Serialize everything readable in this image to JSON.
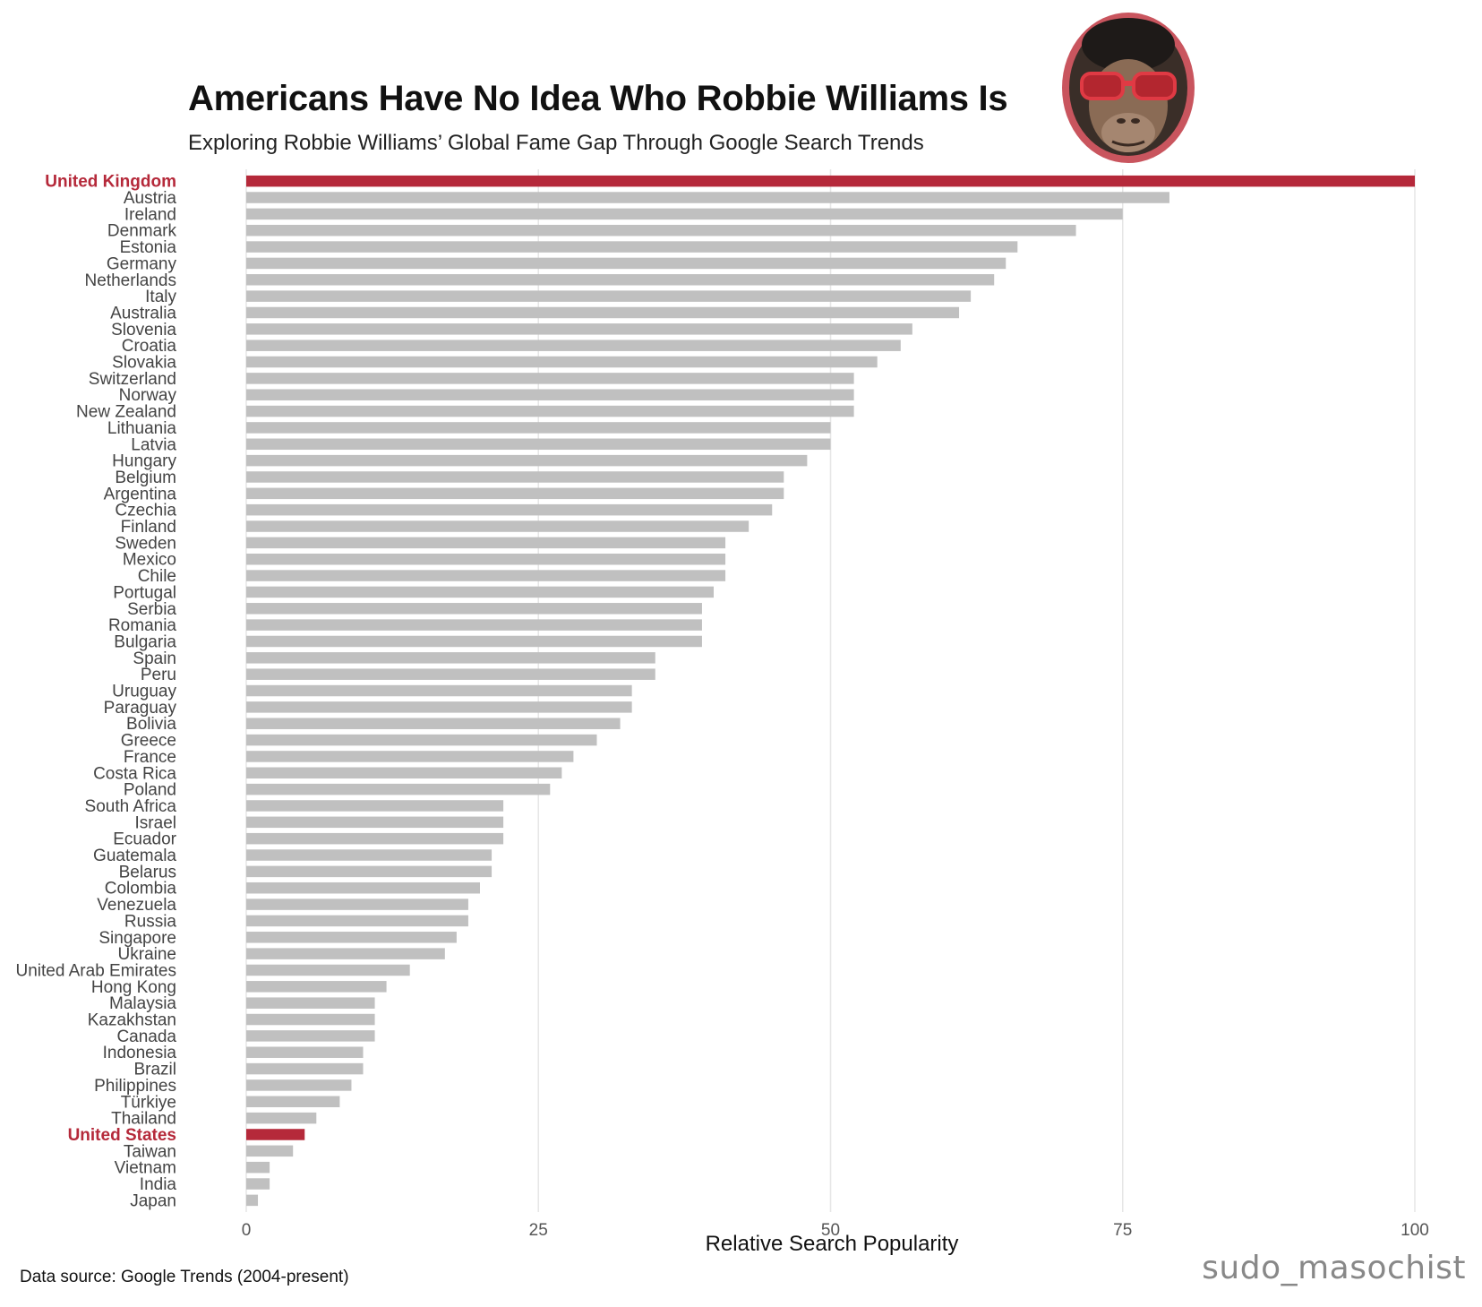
{
  "title": "Americans Have No Idea Who Robbie Williams Is",
  "subtitle": "Exploring Robbie Williams’ Global Fame Gap Through Google Search Trends",
  "source": "Data source: Google Trends (2004-present)",
  "watermark": "sudo_masochist",
  "colors": {
    "highlight": "#b5293a",
    "bar": "#c0c0c0",
    "grid": "#e6e6e6"
  },
  "chart_data": {
    "type": "bar",
    "orientation": "horizontal",
    "xlabel": "Relative Search Popularity",
    "ylabel": "",
    "xlim": [
      0,
      100
    ],
    "xticks": [
      0,
      25,
      50,
      75,
      100
    ],
    "grid": "vertical major",
    "highlighted": [
      "United Kingdom",
      "United States"
    ],
    "categories": [
      "United Kingdom",
      "Austria",
      "Ireland",
      "Denmark",
      "Estonia",
      "Germany",
      "Netherlands",
      "Italy",
      "Australia",
      "Slovenia",
      "Croatia",
      "Slovakia",
      "Switzerland",
      "Norway",
      "New Zealand",
      "Lithuania",
      "Latvia",
      "Hungary",
      "Belgium",
      "Argentina",
      "Czechia",
      "Finland",
      "Sweden",
      "Mexico",
      "Chile",
      "Portugal",
      "Serbia",
      "Romania",
      "Bulgaria",
      "Spain",
      "Peru",
      "Uruguay",
      "Paraguay",
      "Bolivia",
      "Greece",
      "France",
      "Costa Rica",
      "Poland",
      "South Africa",
      "Israel",
      "Ecuador",
      "Guatemala",
      "Belarus",
      "Colombia",
      "Venezuela",
      "Russia",
      "Singapore",
      "Ukraine",
      "United Arab Emirates",
      "Hong Kong",
      "Malaysia",
      "Kazakhstan",
      "Canada",
      "Indonesia",
      "Brazil",
      "Philippines",
      "Türkiye",
      "Thailand",
      "United States",
      "Taiwan",
      "Vietnam",
      "India",
      "Japan"
    ],
    "values": [
      100,
      79,
      75,
      71,
      66,
      65,
      64,
      62,
      61,
      57,
      56,
      54,
      52,
      52,
      52,
      50,
      50,
      48,
      46,
      46,
      45,
      43,
      41,
      41,
      41,
      40,
      39,
      39,
      39,
      35,
      35,
      33,
      33,
      32,
      30,
      28,
      27,
      26,
      22,
      22,
      22,
      21,
      21,
      20,
      19,
      19,
      18,
      17,
      14,
      12,
      11,
      11,
      11,
      10,
      10,
      9,
      8,
      6,
      5,
      4,
      2,
      2,
      1
    ]
  }
}
